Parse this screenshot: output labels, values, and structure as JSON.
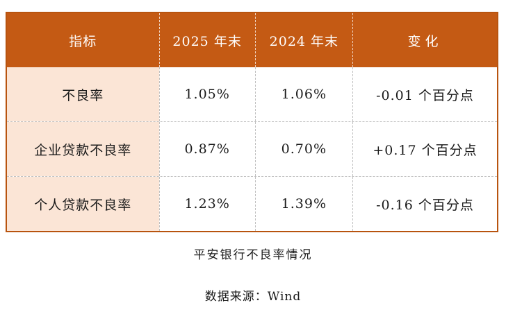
{
  "chart_data": {
    "type": "table",
    "title": "平安银行不良率情况",
    "source": "数据来源：Wind",
    "columns": [
      "指标",
      "2025 年末",
      "2024 年末",
      "变化"
    ],
    "rows": [
      [
        "不良率",
        "1.05%",
        "1.06%",
        "-0.01 个百分点"
      ],
      [
        "企业贷款不良率",
        "0.87%",
        "0.70%",
        "+0.17 个百分点"
      ],
      [
        "个人贷款不良率",
        "1.23%",
        "1.39%",
        "-0.16 个百分点"
      ]
    ]
  },
  "table": {
    "headers": [
      "指标",
      "2025 年末",
      "2024 年末",
      "变化"
    ],
    "rows": [
      {
        "indicator": "不良率",
        "y2025": "1.05%",
        "y2024": "1.06%",
        "change": "-0.01 个百分点"
      },
      {
        "indicator": "企业贷款不良率",
        "y2025": "0.87%",
        "y2024": "0.70%",
        "change": "+0.17 个百分点"
      },
      {
        "indicator": "个人贷款不良率",
        "y2025": "1.23%",
        "y2024": "1.39%",
        "change": "-0.16 个百分点"
      }
    ]
  },
  "caption": "平安银行不良率情况",
  "source": "数据来源：Wind",
  "colors": {
    "header_bg": "#c45a14",
    "header_text": "#ffffff",
    "first_col_bg": "#fbe5d6",
    "border_outer": "#b8540f",
    "dashed_separator": "#bfbfbf",
    "body_text": "#1a1a1a"
  }
}
